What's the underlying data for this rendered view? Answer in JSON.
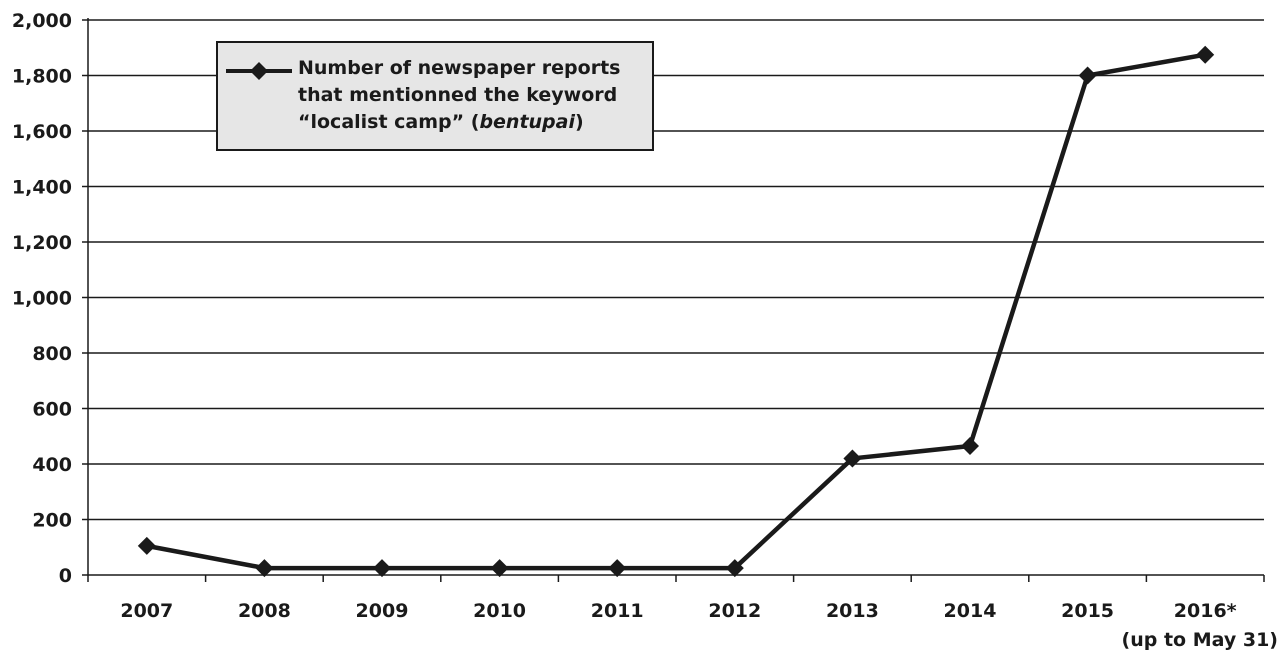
{
  "chart_data": {
    "type": "line",
    "categories": [
      "2007",
      "2008",
      "2009",
      "2010",
      "2011",
      "2012",
      "2013",
      "2014",
      "2015",
      "2016*"
    ],
    "category_sublabels": [
      "",
      "",
      "",
      "",
      "",
      "",
      "",
      "",
      "",
      "(up to May 31)"
    ],
    "series": [
      {
        "name_parts": [
          "Number of newspaper reports",
          "that mentionned the keyword",
          "“localist camp” (",
          "bentupai",
          ")"
        ],
        "values": [
          105,
          25,
          25,
          25,
          25,
          25,
          420,
          465,
          1800,
          1875
        ]
      }
    ],
    "y_ticks": [
      "0",
      "200",
      "400",
      "600",
      "800",
      "1,000",
      "1,200",
      "1,400",
      "1,600",
      "1,800",
      "2,000"
    ],
    "ylim": [
      0,
      2000
    ],
    "grid": "horizontal",
    "legend_position": "top-left",
    "colors": {
      "line": "#1a1a1a",
      "grid": "#1a1a1a",
      "legend_bg": "#e6e6e6"
    }
  }
}
